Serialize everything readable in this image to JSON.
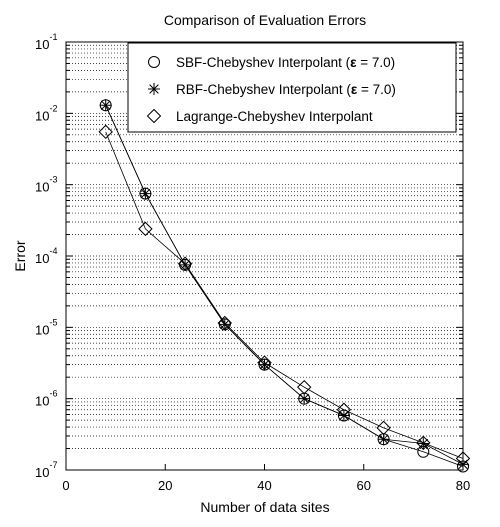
{
  "chart_data": {
    "type": "line",
    "title": "Comparison of Evaluation Errors",
    "xlabel": "Number of data sites",
    "ylabel": "Error",
    "xlim": [
      0,
      80
    ],
    "ylim": [
      1e-07,
      0.1
    ],
    "yscale": "log",
    "x_ticks": [
      "0",
      "20",
      "40",
      "60",
      "80"
    ],
    "y_tick_base": "10",
    "y_tick_exponents": [
      "-7",
      "-6",
      "-5",
      "-4",
      "-3",
      "-2",
      "-1"
    ],
    "grid": "horizontal dotted",
    "legend_position": "top-right",
    "x": [
      8,
      16,
      24,
      32,
      40,
      48,
      56,
      64,
      72,
      80
    ],
    "series": [
      {
        "name_prefix": "SBF-Chebyshev Interpolant (",
        "name_symbol": "ε",
        "name_suffix": " = 7.0)",
        "marker": "circle",
        "values": [
          0.013,
          0.00075,
          7.5e-05,
          1.1e-05,
          3e-06,
          1e-06,
          5.8e-07,
          2.7e-07,
          1.8e-07,
          1.12e-07
        ]
      },
      {
        "name_prefix": "RBF-Chebyshev Interpolant (",
        "name_symbol": "ε",
        "name_suffix": " = 7.0)",
        "marker": "asterisk",
        "values": [
          0.013,
          0.00075,
          7.5e-05,
          1.1e-05,
          3e-06,
          1e-06,
          5.8e-07,
          2.7e-07,
          2.35e-07,
          1.2e-07
        ]
      },
      {
        "name_prefix": "Lagrange-Chebyshev Interpolant",
        "name_symbol": "",
        "name_suffix": "",
        "marker": "diamond",
        "values": [
          0.0055,
          0.00024,
          7.8e-05,
          1.15e-05,
          3.2e-06,
          1.45e-06,
          7e-07,
          3.9e-07,
          2.4e-07,
          1.45e-07
        ]
      }
    ]
  }
}
